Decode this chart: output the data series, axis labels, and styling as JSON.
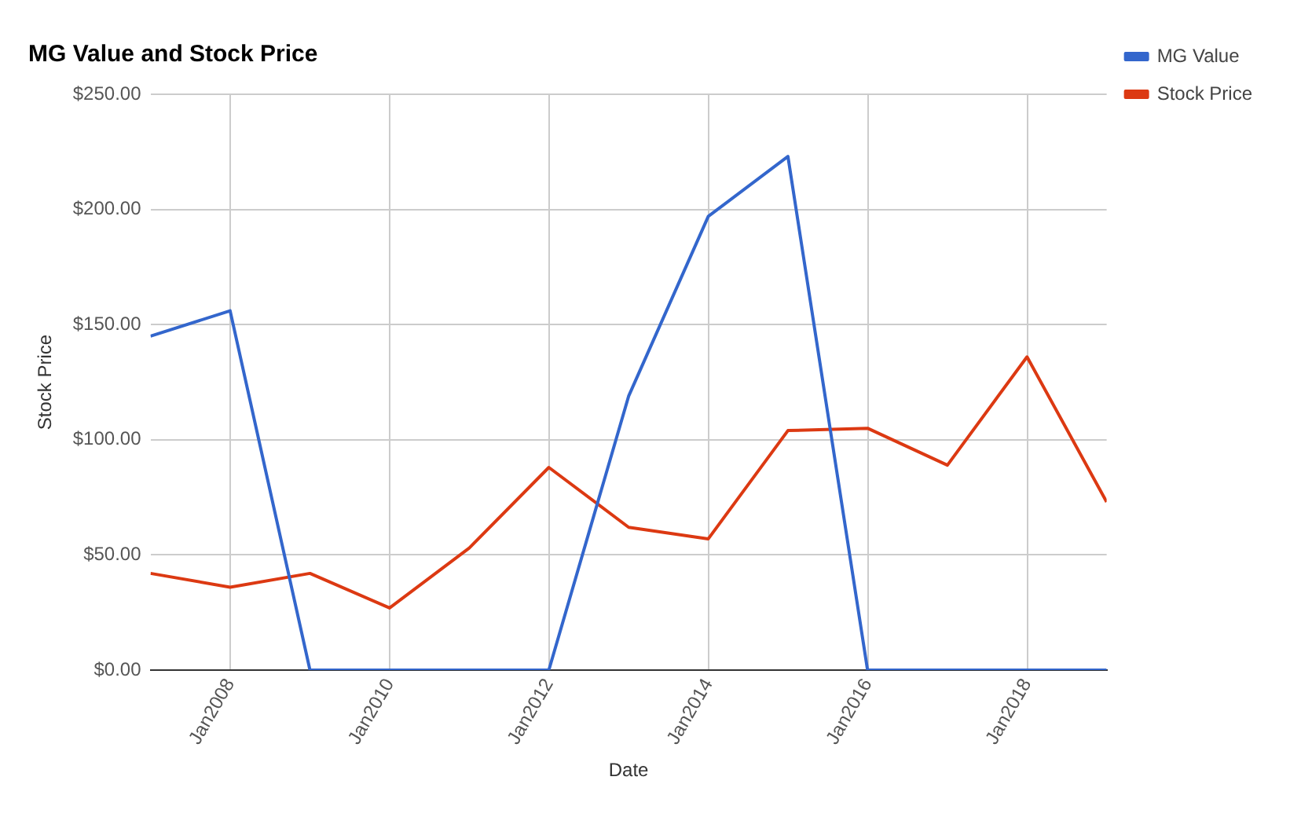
{
  "chart_data": {
    "type": "line",
    "title": "MG Value and Stock Price",
    "xlabel": "Date",
    "ylabel": "Stock Price",
    "x": [
      "2006-12-31",
      "2007-12-31",
      "2008-12-31",
      "2009-12-31",
      "2010-12-31",
      "2011-12-31",
      "2012-12-31",
      "2013-12-31",
      "2014-12-31",
      "2015-12-31",
      "2016-12-31",
      "2017-12-31",
      "2018-12-31"
    ],
    "series": [
      {
        "name": "MG Value",
        "color": "#3366cc",
        "values": [
          145,
          156,
          0,
          0,
          0,
          0,
          119,
          197,
          223,
          0,
          0,
          0,
          0
        ]
      },
      {
        "name": "Stock Price",
        "color": "#dc3912",
        "values": [
          42,
          36,
          42,
          27,
          53,
          88,
          62,
          57,
          104,
          105,
          89,
          136,
          73
        ]
      }
    ],
    "xlim": [
      "2006-12-31",
      "2018-12-31"
    ],
    "xticks": [
      {
        "value": "2008-01-01",
        "label": "Jan2008"
      },
      {
        "value": "2010-01-01",
        "label": "Jan2010"
      },
      {
        "value": "2012-01-01",
        "label": "Jan2012"
      },
      {
        "value": "2014-01-01",
        "label": "Jan2014"
      },
      {
        "value": "2016-01-01",
        "label": "Jan2016"
      },
      {
        "value": "2018-01-01",
        "label": "Jan2018"
      }
    ],
    "ylim": [
      0,
      250
    ],
    "yticks": [
      {
        "value": 0,
        "label": "$0.00"
      },
      {
        "value": 50,
        "label": "$50.00"
      },
      {
        "value": 100,
        "label": "$100.00"
      },
      {
        "value": 150,
        "label": "$150.00"
      },
      {
        "value": 200,
        "label": "$200.00"
      },
      {
        "value": 250,
        "label": "$250.00"
      }
    ],
    "grid": true,
    "legend": "top right",
    "marker": "none",
    "line_style": "solid"
  }
}
